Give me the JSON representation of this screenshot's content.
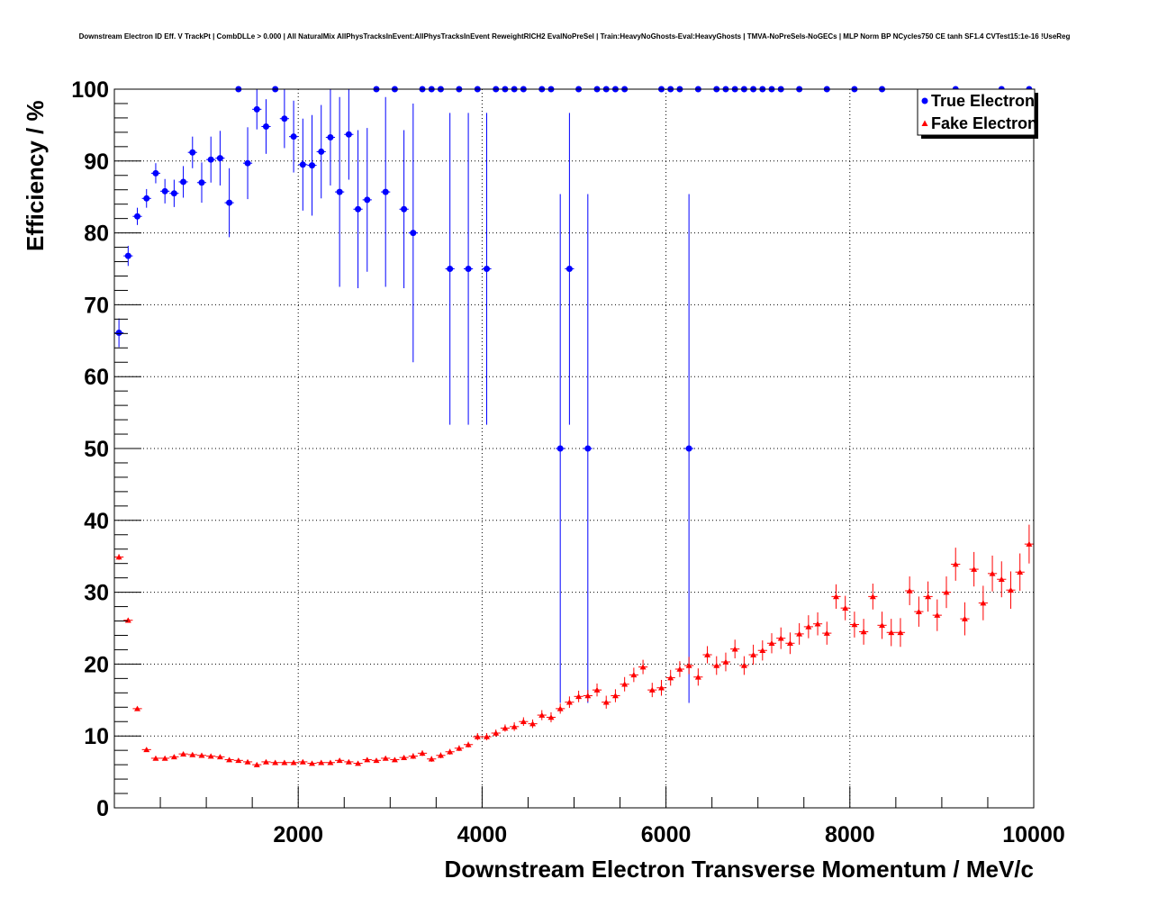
{
  "chart_data": {
    "type": "scatter",
    "title": "Downstream Electron ID Eff. V TrackPt | CombDLLe > 0.000 | All NaturalMix AllPhysTracksInEvent:AllPhysTracksInEvent ReweightRICH2 EvalNoPreSel | Train:HeavyNoGhosts-Eval:HeavyGhosts | TMVA-NoPreSels-NoGECs | MLP Norm BP NCycles750 CE tanh SF1.4 CVTest15:1e-16 !UseReg",
    "xlabel": "Downstream Electron Transverse Momentum / MeV/c",
    "ylabel": "Efficiency / %",
    "xlim": [
      0,
      10000
    ],
    "ylim": [
      0,
      100
    ],
    "x_ticks": [
      "2000",
      "4000",
      "6000",
      "8000",
      "10000"
    ],
    "y_ticks": [
      "0",
      "10",
      "20",
      "30",
      "40",
      "50",
      "60",
      "70",
      "80",
      "90",
      "100"
    ],
    "grid": true,
    "legend_position": "top-right",
    "colors": {
      "true": "#0000ff",
      "fake": "#ff0000"
    },
    "series": [
      {
        "name": "True Electron",
        "marker": "circle",
        "points": [
          [
            50,
            66.1,
            2.0
          ],
          [
            150,
            76.8,
            1.4
          ],
          [
            250,
            82.3,
            1.2
          ],
          [
            350,
            84.8,
            1.3
          ],
          [
            450,
            88.3,
            1.4
          ],
          [
            550,
            85.8,
            1.7
          ],
          [
            650,
            85.5,
            1.9
          ],
          [
            750,
            87.1,
            2.2
          ],
          [
            850,
            91.2,
            2.2
          ],
          [
            950,
            87.0,
            2.8
          ],
          [
            1050,
            90.2,
            3.2
          ],
          [
            1150,
            90.4,
            3.8
          ],
          [
            1250,
            84.2,
            4.8
          ],
          [
            1350,
            100,
            0
          ],
          [
            1450,
            89.7,
            5.0
          ],
          [
            1550,
            97.2,
            2.8
          ],
          [
            1650,
            94.8,
            3.8
          ],
          [
            1750,
            100,
            0
          ],
          [
            1850,
            95.9,
            4.1
          ],
          [
            1950,
            93.4,
            5.0
          ],
          [
            2050,
            89.5,
            6.4
          ],
          [
            2150,
            89.4,
            7.0
          ],
          [
            2250,
            91.3,
            6.5
          ],
          [
            2350,
            93.3,
            6.7
          ],
          [
            2450,
            85.7,
            13.2
          ],
          [
            2550,
            93.7,
            6.3
          ],
          [
            2650,
            83.3,
            11.0
          ],
          [
            2750,
            84.6,
            10.0
          ],
          [
            2850,
            100,
            0
          ],
          [
            2950,
            85.7,
            13.2
          ],
          [
            3050,
            100,
            0
          ],
          [
            3150,
            83.3,
            11.0
          ],
          [
            3250,
            80.0,
            18.0
          ],
          [
            3350,
            100,
            0
          ],
          [
            3450,
            100,
            0
          ],
          [
            3550,
            100,
            0
          ],
          [
            3650,
            75.0,
            21.7
          ],
          [
            3750,
            100,
            0
          ],
          [
            3850,
            75.0,
            21.7
          ],
          [
            3950,
            100,
            0
          ],
          [
            4050,
            75.0,
            21.7
          ],
          [
            4150,
            100,
            0
          ],
          [
            4250,
            100,
            0
          ],
          [
            4350,
            100,
            0
          ],
          [
            4450,
            100,
            0
          ],
          [
            4650,
            100,
            0
          ],
          [
            4750,
            100,
            0
          ],
          [
            4850,
            50.0,
            35.4
          ],
          [
            4950,
            75.0,
            21.7
          ],
          [
            5050,
            100,
            0
          ],
          [
            5150,
            50.0,
            35.4
          ],
          [
            5250,
            100,
            0
          ],
          [
            5350,
            100,
            0
          ],
          [
            5450,
            100,
            0
          ],
          [
            5550,
            100,
            0
          ],
          [
            5950,
            100,
            0
          ],
          [
            6050,
            100,
            0
          ],
          [
            6150,
            100,
            0
          ],
          [
            6250,
            50.0,
            35.4
          ],
          [
            6350,
            100,
            0
          ],
          [
            6550,
            100,
            0
          ],
          [
            6650,
            100,
            0
          ],
          [
            6750,
            100,
            0
          ],
          [
            6850,
            100,
            0
          ],
          [
            6950,
            100,
            0
          ],
          [
            7050,
            100,
            0
          ],
          [
            7150,
            100,
            0
          ],
          [
            7250,
            100,
            0
          ],
          [
            7450,
            100,
            0
          ],
          [
            7750,
            100,
            0
          ],
          [
            8050,
            100,
            0
          ],
          [
            8350,
            100,
            0
          ],
          [
            9150,
            100,
            0
          ],
          [
            9650,
            100,
            0
          ],
          [
            9950,
            100,
            0
          ]
        ]
      },
      {
        "name": "Fake Electron",
        "marker": "triangle",
        "points": [
          [
            50,
            34.9,
            0.4
          ],
          [
            150,
            26.1,
            0.3
          ],
          [
            250,
            13.8,
            0.3
          ],
          [
            350,
            8.1,
            0.2
          ],
          [
            450,
            6.9,
            0.2
          ],
          [
            550,
            6.9,
            0.2
          ],
          [
            650,
            7.1,
            0.2
          ],
          [
            750,
            7.5,
            0.2
          ],
          [
            850,
            7.4,
            0.2
          ],
          [
            950,
            7.3,
            0.2
          ],
          [
            1050,
            7.2,
            0.2
          ],
          [
            1150,
            7.1,
            0.2
          ],
          [
            1250,
            6.7,
            0.2
          ],
          [
            1350,
            6.6,
            0.2
          ],
          [
            1450,
            6.4,
            0.2
          ],
          [
            1550,
            6.0,
            0.3
          ],
          [
            1650,
            6.4,
            0.3
          ],
          [
            1750,
            6.3,
            0.3
          ],
          [
            1850,
            6.3,
            0.3
          ],
          [
            1950,
            6.3,
            0.3
          ],
          [
            2050,
            6.4,
            0.3
          ],
          [
            2150,
            6.2,
            0.3
          ],
          [
            2250,
            6.3,
            0.3
          ],
          [
            2350,
            6.3,
            0.3
          ],
          [
            2450,
            6.6,
            0.3
          ],
          [
            2550,
            6.4,
            0.3
          ],
          [
            2650,
            6.2,
            0.3
          ],
          [
            2750,
            6.7,
            0.3
          ],
          [
            2850,
            6.6,
            0.3
          ],
          [
            2950,
            6.9,
            0.3
          ],
          [
            3050,
            6.7,
            0.3
          ],
          [
            3150,
            7.0,
            0.3
          ],
          [
            3250,
            7.2,
            0.4
          ],
          [
            3350,
            7.6,
            0.4
          ],
          [
            3450,
            6.8,
            0.4
          ],
          [
            3550,
            7.3,
            0.4
          ],
          [
            3650,
            7.8,
            0.4
          ],
          [
            3750,
            8.3,
            0.4
          ],
          [
            3850,
            8.8,
            0.4
          ],
          [
            3950,
            9.9,
            0.5
          ],
          [
            4050,
            9.9,
            0.5
          ],
          [
            4150,
            10.4,
            0.5
          ],
          [
            4250,
            11.1,
            0.5
          ],
          [
            4350,
            11.3,
            0.6
          ],
          [
            4450,
            12.0,
            0.6
          ],
          [
            4550,
            11.7,
            0.6
          ],
          [
            4650,
            12.9,
            0.7
          ],
          [
            4750,
            12.6,
            0.7
          ],
          [
            4850,
            13.8,
            0.7
          ],
          [
            4950,
            14.7,
            0.8
          ],
          [
            5050,
            15.5,
            0.8
          ],
          [
            5150,
            15.6,
            0.8
          ],
          [
            5250,
            16.4,
            0.9
          ],
          [
            5350,
            14.7,
            0.9
          ],
          [
            5450,
            15.6,
            0.9
          ],
          [
            5550,
            17.2,
            1.0
          ],
          [
            5650,
            18.5,
            1.0
          ],
          [
            5750,
            19.6,
            1.0
          ],
          [
            5850,
            16.4,
            1.0
          ],
          [
            5950,
            16.7,
            1.1
          ],
          [
            6050,
            18.1,
            1.1
          ],
          [
            6150,
            19.3,
            1.1
          ],
          [
            6250,
            19.8,
            1.2
          ],
          [
            6350,
            18.2,
            1.2
          ],
          [
            6450,
            21.3,
            1.2
          ],
          [
            6550,
            19.8,
            1.3
          ],
          [
            6650,
            20.3,
            1.3
          ],
          [
            6750,
            22.1,
            1.3
          ],
          [
            6850,
            19.8,
            1.3
          ],
          [
            6950,
            21.3,
            1.4
          ],
          [
            7050,
            21.9,
            1.4
          ],
          [
            7150,
            22.9,
            1.4
          ],
          [
            7250,
            23.6,
            1.5
          ],
          [
            7350,
            22.9,
            1.5
          ],
          [
            7450,
            24.2,
            1.5
          ],
          [
            7550,
            25.2,
            1.6
          ],
          [
            7650,
            25.6,
            1.6
          ],
          [
            7750,
            24.3,
            1.6
          ],
          [
            7850,
            29.4,
            1.7
          ],
          [
            7950,
            27.8,
            1.7
          ],
          [
            8050,
            25.5,
            1.8
          ],
          [
            8150,
            24.5,
            1.8
          ],
          [
            8250,
            29.4,
            1.8
          ],
          [
            8350,
            25.4,
            1.9
          ],
          [
            8450,
            24.4,
            1.9
          ],
          [
            8550,
            24.4,
            2.0
          ],
          [
            8650,
            30.2,
            2.0
          ],
          [
            8750,
            27.3,
            2.1
          ],
          [
            8850,
            29.4,
            2.1
          ],
          [
            8950,
            26.8,
            2.2
          ],
          [
            9050,
            30.0,
            2.2
          ],
          [
            9150,
            33.9,
            2.3
          ],
          [
            9250,
            26.3,
            2.3
          ],
          [
            9350,
            33.2,
            2.4
          ],
          [
            9450,
            28.5,
            2.4
          ],
          [
            9550,
            32.6,
            2.5
          ],
          [
            9650,
            31.8,
            2.5
          ],
          [
            9750,
            30.3,
            2.6
          ],
          [
            9850,
            32.8,
            2.6
          ],
          [
            9950,
            36.7,
            2.7
          ]
        ]
      }
    ]
  }
}
